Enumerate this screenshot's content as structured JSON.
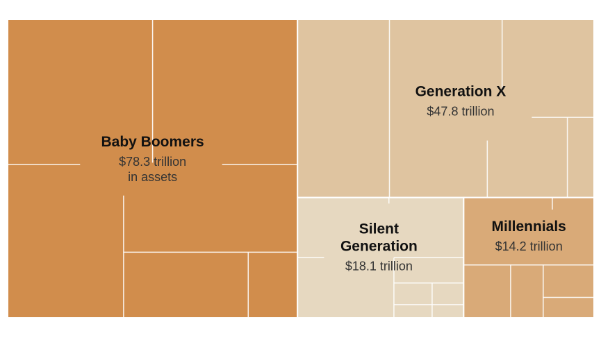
{
  "chart_data": {
    "type": "treemap",
    "title": "",
    "unit": "trillion",
    "groups": [
      {
        "name_lines": [
          "Baby Boomers"
        ],
        "value_lines": [
          "$78.3 trillion",
          "in assets"
        ],
        "value": 78.3,
        "color": "#d18d4c"
      },
      {
        "name_lines": [
          "Generation X"
        ],
        "value_lines": [
          "$47.8 trillion"
        ],
        "value": 47.8,
        "color": "#dfc4a0"
      },
      {
        "name_lines": [
          "Silent",
          "Generation"
        ],
        "value_lines": [
          "$18.1 trillion"
        ],
        "value": 18.1,
        "color": "#e6d8c0"
      },
      {
        "name_lines": [
          "Millennials"
        ],
        "value_lines": [
          "$14.2 trillion"
        ],
        "value": 14.2,
        "color": "#d9aa78"
      }
    ]
  }
}
